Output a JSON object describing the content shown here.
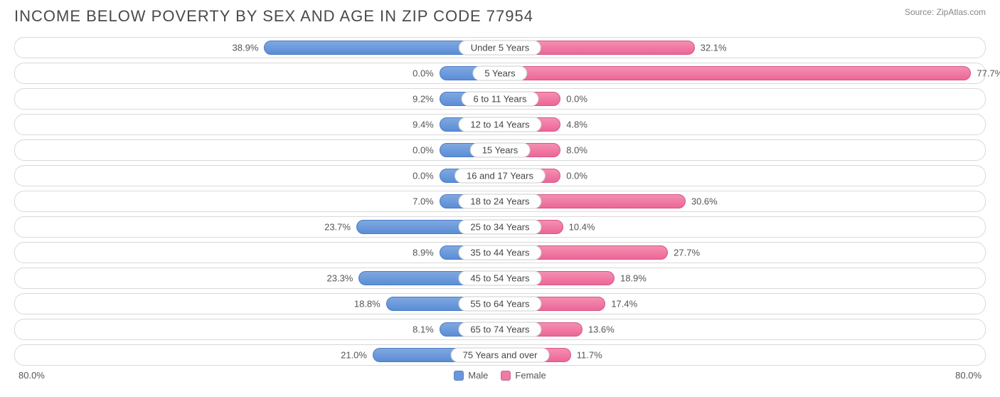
{
  "title": "INCOME BELOW POVERTY BY SEX AND AGE IN ZIP CODE 77954",
  "source": "Source: ZipAtlas.com",
  "axis_max_pct": 80.0,
  "axis_left_label": "80.0%",
  "axis_right_label": "80.0%",
  "colors": {
    "male_bar": "#6a97db",
    "male_border": "#4a7bc4",
    "female_bar": "#ee7aa5",
    "female_border": "#d65588",
    "row_border": "#d9d9d9",
    "text": "#555555",
    "title": "#4a4a4a",
    "source": "#888888",
    "background": "#ffffff",
    "pill_border": "#cccccc"
  },
  "legend": {
    "male": "Male",
    "female": "Female"
  },
  "min_bar_pct": 10.0,
  "rows": [
    {
      "category": "Under 5 Years",
      "male": 38.9,
      "female": 32.1
    },
    {
      "category": "5 Years",
      "male": 0.0,
      "female": 77.7
    },
    {
      "category": "6 to 11 Years",
      "male": 9.2,
      "female": 0.0
    },
    {
      "category": "12 to 14 Years",
      "male": 9.4,
      "female": 4.8
    },
    {
      "category": "15 Years",
      "male": 0.0,
      "female": 8.0
    },
    {
      "category": "16 and 17 Years",
      "male": 0.0,
      "female": 0.0
    },
    {
      "category": "18 to 24 Years",
      "male": 7.0,
      "female": 30.6
    },
    {
      "category": "25 to 34 Years",
      "male": 23.7,
      "female": 10.4
    },
    {
      "category": "35 to 44 Years",
      "male": 8.9,
      "female": 27.7
    },
    {
      "category": "45 to 54 Years",
      "male": 23.3,
      "female": 18.9
    },
    {
      "category": "55 to 64 Years",
      "male": 18.8,
      "female": 17.4
    },
    {
      "category": "65 to 74 Years",
      "male": 8.1,
      "female": 13.6
    },
    {
      "category": "75 Years and over",
      "male": 21.0,
      "female": 11.7
    }
  ]
}
